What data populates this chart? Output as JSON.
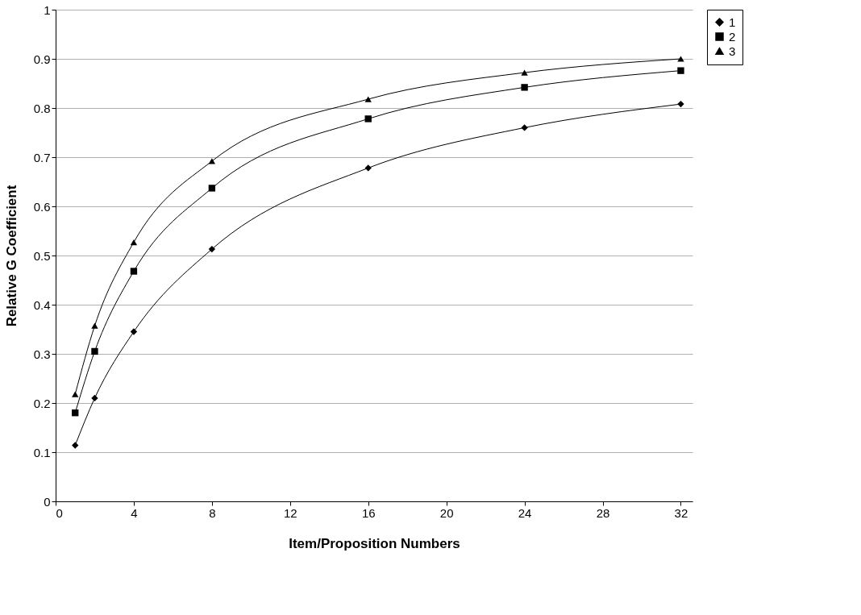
{
  "chart_data": {
    "type": "line",
    "xlabel": "Item/Proposition Numbers",
    "ylabel": "Relative G Coefficient",
    "x": [
      1,
      2,
      4,
      8,
      16,
      24,
      32
    ],
    "series": [
      {
        "name": "1",
        "color": "#000000",
        "marker": "diamond",
        "values": [
          0.114,
          0.21,
          0.345,
          0.513,
          0.678,
          0.76,
          0.808
        ]
      },
      {
        "name": "2",
        "color": "#000000",
        "marker": "square",
        "values": [
          0.18,
          0.305,
          0.468,
          0.637,
          0.778,
          0.842,
          0.876
        ]
      },
      {
        "name": "3",
        "color": "#000000",
        "marker": "triangle",
        "values": [
          0.218,
          0.357,
          0.527,
          0.692,
          0.818,
          0.872,
          0.9
        ]
      }
    ],
    "xlim": [
      0,
      32.6
    ],
    "xticks": [
      0,
      4,
      8,
      12,
      16,
      20,
      24,
      28,
      32
    ],
    "ylim": [
      0,
      1
    ],
    "yticks": [
      0,
      0.1,
      0.2,
      0.3,
      0.4,
      0.5,
      0.6,
      0.7,
      0.8,
      0.9,
      1
    ],
    "grid": "y",
    "legend": "right",
    "line_style": "solid"
  }
}
